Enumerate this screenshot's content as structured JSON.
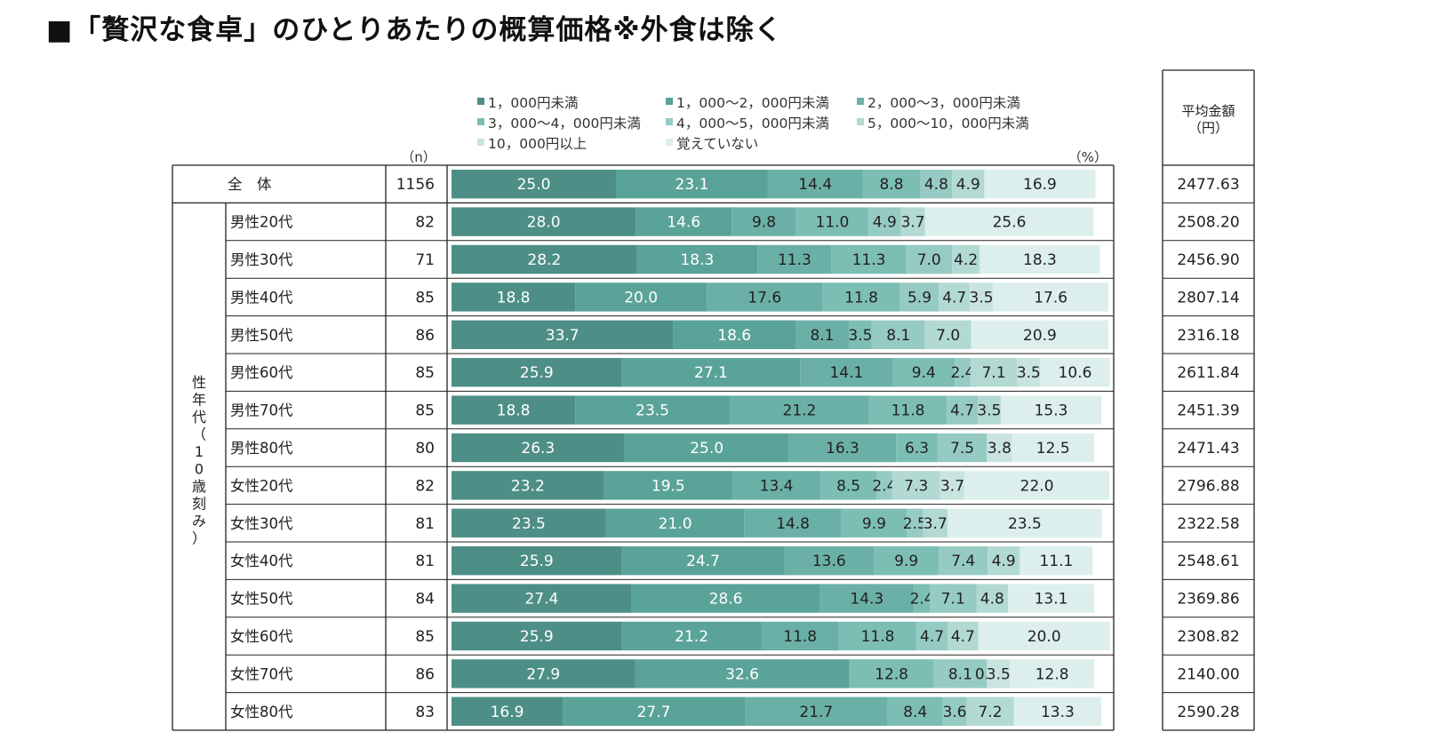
{
  "title": "■「贅沢な食卓」のひとりあたりの概算価格※外食は除く",
  "chart_data": {
    "type": "bar",
    "orientation": "horizontal",
    "stacked": true,
    "n_header": "（n）",
    "unit_label": "（%）",
    "avg_header": "平均金額\n（円）",
    "group_label": "性年代（10歳刻み）",
    "xlim": [
      0,
      100
    ],
    "legend_position": "top",
    "series": [
      {
        "name": "1，000円未満",
        "color": "#4d8f86"
      },
      {
        "name": "1，000～2，000円未満",
        "color": "#5aa398"
      },
      {
        "name": "2，000～3，000円未満",
        "color": "#6bb0a6"
      },
      {
        "name": "3，000～4，000円未満",
        "color": "#7cbeb4"
      },
      {
        "name": "4，000～5，000円未満",
        "color": "#95cbc3"
      },
      {
        "name": "5，000～10，000円未満",
        "color": "#b3d9d3"
      },
      {
        "name": "10，000円以上",
        "color": "#c9e4df"
      },
      {
        "name": "覚えていない",
        "color": "#dcefec"
      }
    ],
    "rows": [
      {
        "label": "全　体",
        "n": "1156",
        "avg": "2477.63",
        "values": [
          25.0,
          23.1,
          14.4,
          8.8,
          4.8,
          4.9,
          null,
          16.9
        ],
        "labels": [
          "25.0",
          "23.1",
          "14.4",
          "8.8",
          "4.8",
          "4.9",
          "",
          "16.9"
        ]
      },
      {
        "label": "男性20代",
        "n": "82",
        "avg": "2508.20",
        "values": [
          28.0,
          14.6,
          9.8,
          11.0,
          4.9,
          3.7,
          null,
          25.6
        ],
        "labels": [
          "28.0",
          "14.6",
          "9.8",
          "11.0",
          "4.9",
          "3.7",
          "",
          "25.6"
        ]
      },
      {
        "label": "男性30代",
        "n": "71",
        "avg": "2456.90",
        "values": [
          28.2,
          18.3,
          11.3,
          11.3,
          7.0,
          4.2,
          null,
          18.3
        ],
        "labels": [
          "28.2",
          "18.3",
          "11.3",
          "11.3",
          "7.0",
          "4.2",
          "",
          "18.3"
        ]
      },
      {
        "label": "男性40代",
        "n": "85",
        "avg": "2807.14",
        "values": [
          18.8,
          20.0,
          17.6,
          11.8,
          5.9,
          4.7,
          3.5,
          17.6
        ],
        "labels": [
          "18.8",
          "20.0",
          "17.6",
          "11.8",
          "5.9",
          "4.7",
          "3.5",
          "17.6"
        ]
      },
      {
        "label": "男性50代",
        "n": "86",
        "avg": "2316.18",
        "values": [
          33.7,
          18.6,
          8.1,
          3.5,
          8.1,
          7.0,
          null,
          20.9
        ],
        "labels": [
          "33.7",
          "18.6",
          "8.1",
          "3.5",
          "8.1",
          "7.0",
          "",
          "20.9"
        ]
      },
      {
        "label": "男性60代",
        "n": "85",
        "avg": "2611.84",
        "values": [
          25.9,
          27.1,
          14.1,
          9.4,
          2.4,
          7.1,
          3.5,
          10.6
        ],
        "labels": [
          "25.9",
          "27.1",
          "14.1",
          "9.4",
          "2.4",
          "7.1",
          "3.5",
          "10.6"
        ]
      },
      {
        "label": "男性70代",
        "n": "85",
        "avg": "2451.39",
        "values": [
          18.8,
          23.5,
          21.2,
          11.8,
          4.7,
          3.5,
          null,
          15.3
        ],
        "labels": [
          "18.8",
          "23.5",
          "21.2",
          "11.8",
          "4.7",
          "3.5",
          "",
          "15.3"
        ]
      },
      {
        "label": "男性80代",
        "n": "80",
        "avg": "2471.43",
        "values": [
          26.3,
          25.0,
          16.3,
          6.3,
          7.5,
          null,
          3.8,
          12.5
        ],
        "labels": [
          "26.3",
          "25.0",
          "16.3",
          "6.3",
          "7.5",
          "",
          "3.8",
          "12.5"
        ]
      },
      {
        "label": "女性20代",
        "n": "82",
        "avg": "2796.88",
        "values": [
          23.2,
          19.5,
          13.4,
          8.5,
          2.4,
          7.3,
          3.7,
          22.0
        ],
        "labels": [
          "23.2",
          "19.5",
          "13.4",
          "8.5",
          "2.4",
          "7.3",
          "3.7",
          "22.0"
        ]
      },
      {
        "label": "女性30代",
        "n": "81",
        "avg": "2322.58",
        "values": [
          23.5,
          21.0,
          14.8,
          9.9,
          2.5,
          3.7,
          null,
          23.5
        ],
        "labels": [
          "23.5",
          "21.0",
          "14.8",
          "9.9",
          "2.5",
          "3.7",
          "",
          "23.5"
        ]
      },
      {
        "label": "女性40代",
        "n": "81",
        "avg": "2548.61",
        "values": [
          25.9,
          24.7,
          13.6,
          9.9,
          7.4,
          4.9,
          null,
          11.1
        ],
        "labels": [
          "25.9",
          "24.7",
          "13.6",
          "9.9",
          "7.4",
          "4.9",
          "",
          "11.1"
        ]
      },
      {
        "label": "女性50代",
        "n": "84",
        "avg": "2369.86",
        "values": [
          27.4,
          28.6,
          14.3,
          2.4,
          7.1,
          4.8,
          null,
          13.1
        ],
        "labels": [
          "27.4",
          "28.6",
          "14.3",
          "2.4",
          "7.1",
          "4.8",
          "",
          "13.1"
        ]
      },
      {
        "label": "女性60代",
        "n": "85",
        "avg": "2308.82",
        "values": [
          25.9,
          21.2,
          11.8,
          11.8,
          4.7,
          4.7,
          null,
          20.0
        ],
        "labels": [
          "25.9",
          "21.2",
          "11.8",
          "11.8",
          "4.7",
          "4.7",
          "",
          "20.0"
        ]
      },
      {
        "label": "女性70代",
        "n": "86",
        "avg": "2140.00",
        "values": [
          27.9,
          32.6,
          null,
          12.8,
          8.1,
          0.0,
          3.5,
          12.8
        ],
        "labels": [
          "27.9",
          "32.6",
          "",
          "12.8",
          "8.1",
          "0.0",
          "3.5",
          "12.8"
        ]
      },
      {
        "label": "女性80代",
        "n": "83",
        "avg": "2590.28",
        "values": [
          16.9,
          27.7,
          21.7,
          8.4,
          3.6,
          7.2,
          null,
          13.3
        ],
        "labels": [
          "16.9",
          "27.7",
          "21.7",
          "8.4",
          "3.6",
          "7.2",
          "",
          "13.3"
        ]
      }
    ]
  }
}
